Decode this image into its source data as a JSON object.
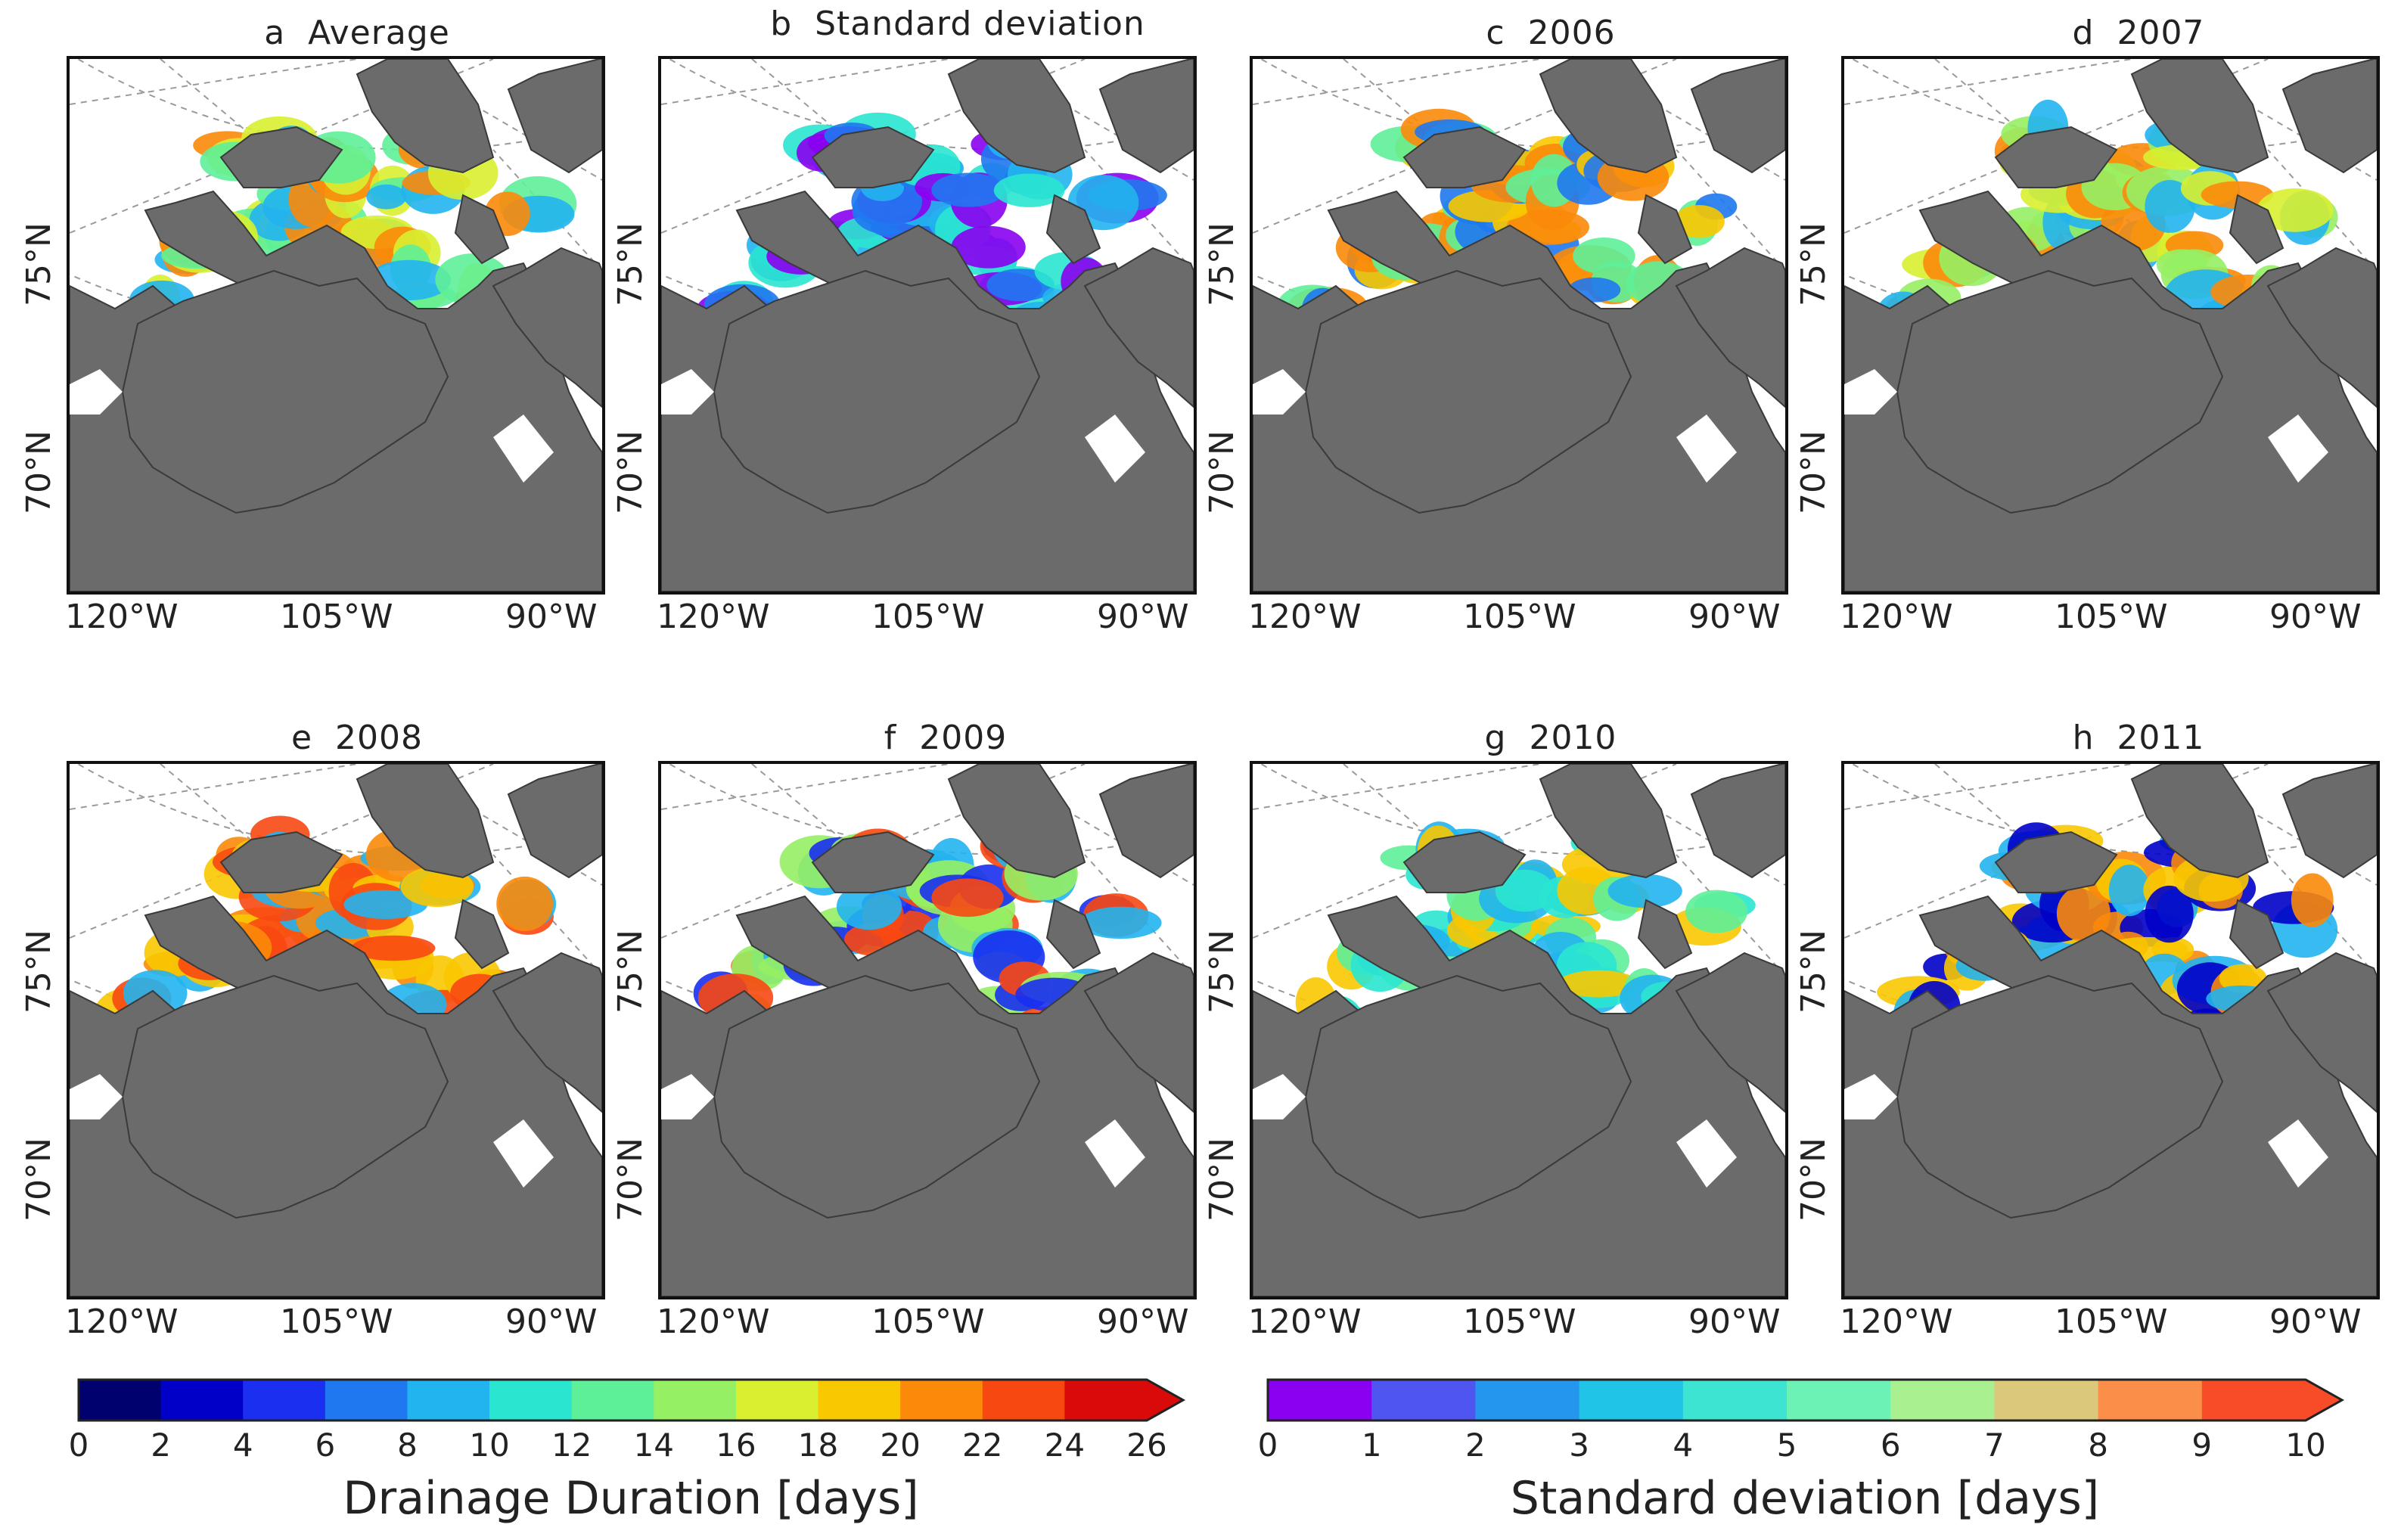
{
  "panels": [
    {
      "title": "a  Average",
      "style": "avg"
    },
    {
      "title": "b  Standard deviation",
      "style": "std"
    },
    {
      "title": "c  2006",
      "style": "y2006"
    },
    {
      "title": "d  2007",
      "style": "y2007"
    },
    {
      "title": "e  2008",
      "style": "y2008"
    },
    {
      "title": "f  2009",
      "style": "y2009"
    },
    {
      "title": "g  2010",
      "style": "y2010"
    },
    {
      "title": "h  2011",
      "style": "y2011"
    }
  ],
  "lat_labels": [
    "75°N",
    "70°N"
  ],
  "lon_labels": [
    "120°W",
    "105°W",
    "90°W"
  ],
  "colorbar_duration": {
    "label": "Drainage Duration [days]",
    "ticks": [
      "0",
      "2",
      "4",
      "6",
      "8",
      "10",
      "12",
      "14",
      "16",
      "18",
      "20",
      "22",
      "24",
      "26"
    ],
    "colors": [
      "#00006e",
      "#0000c8",
      "#1a2ff0",
      "#1f78f0",
      "#22b4ee",
      "#2ae6d0",
      "#5ef098",
      "#96f064",
      "#d8f030",
      "#f8c800",
      "#fb8a0a",
      "#f84812",
      "#d80a0a"
    ]
  },
  "colorbar_std": {
    "label": "Standard deviation [days]",
    "ticks": [
      "0",
      "1",
      "2",
      "3",
      "4",
      "5",
      "6",
      "7",
      "8",
      "9",
      "10"
    ],
    "colors": [
      "#8a00f0",
      "#4f55f0",
      "#2596ee",
      "#1fc4e6",
      "#3ee4d2",
      "#6cf2b4",
      "#a8f090",
      "#dcc87a",
      "#fb8f4a",
      "#f84c28"
    ]
  },
  "colors": {
    "land": "#6b6b6b",
    "ocean": "#ffffff",
    "grid": "#9a9a9a"
  }
}
